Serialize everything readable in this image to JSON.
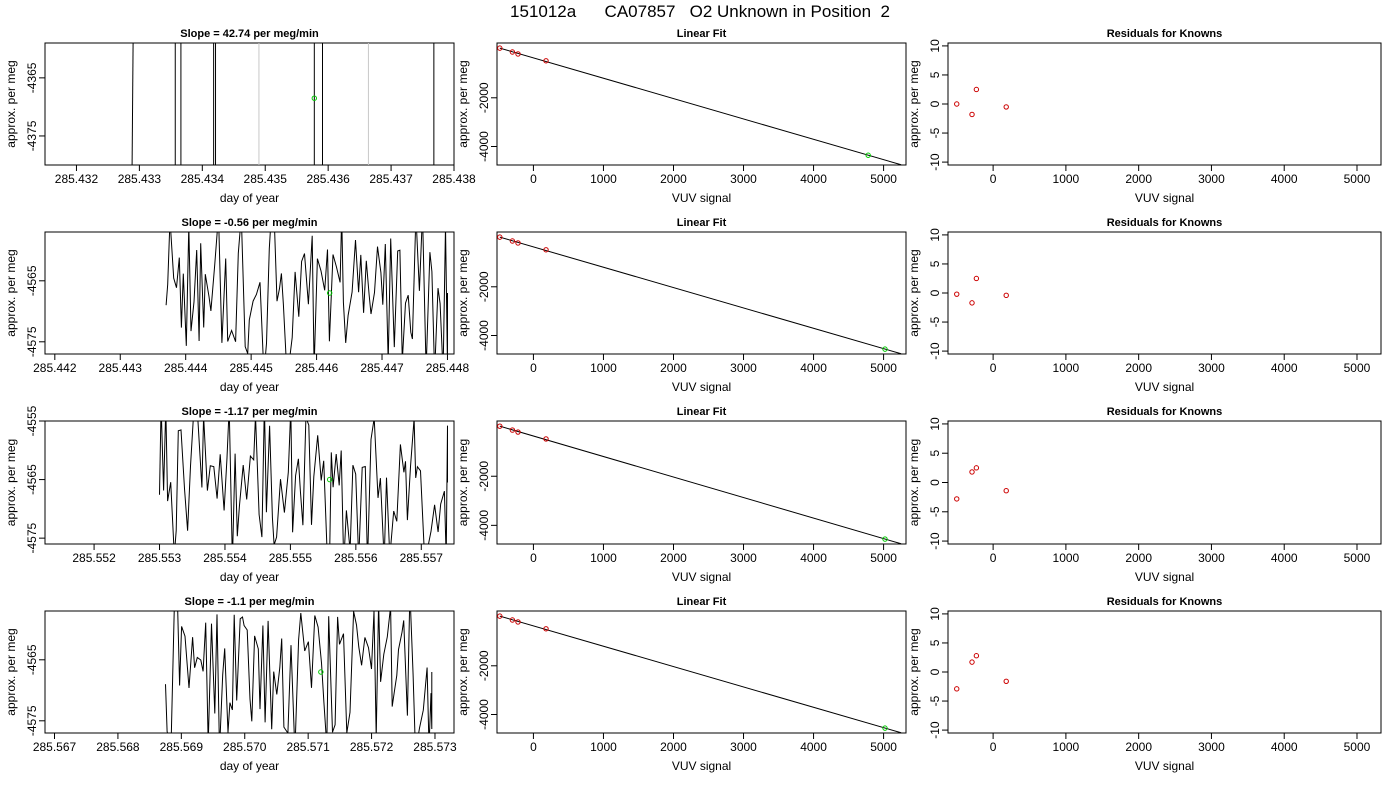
{
  "page": {
    "title": "151012a      CA07857   O2 Unknown in Position  2"
  },
  "colors": {
    "line": "#000000",
    "unknown_point": "#00cc00",
    "known_point": "#cc0000",
    "gray_line": "#c8c8c8",
    "axis": "#000000"
  },
  "chart_data": [
    {
      "type": "line",
      "title": "Slope =  42.74  per meg/min",
      "xlabel": "day of year",
      "ylabel": "approx. per meg",
      "xlim": [
        285.4315,
        285.438
      ],
      "ylim": [
        -4380,
        -4359
      ],
      "x_ticks": [
        "285.432",
        "285.433",
        "285.434",
        "285.435",
        "285.436",
        "285.437",
        "285.438"
      ],
      "y_ticks": [
        "-4365",
        "-4375"
      ],
      "vertical_lines_black": [
        285.4329,
        285.43357,
        285.43366,
        285.43418,
        285.43421,
        285.43578,
        285.43591,
        285.43768
      ],
      "vertical_lines_gray": [
        285.4349,
        285.43664
      ],
      "unknown_point": {
        "x": 285.43578,
        "y": -4368.5
      }
    },
    {
      "type": "scatter",
      "title": "Linear Fit",
      "xlabel": "VUV signal",
      "ylabel": "approx. per meg",
      "xlim": [
        -520,
        5320
      ],
      "ylim": [
        -4760,
        250
      ],
      "x_ticks": [
        "0",
        "1000",
        "2000",
        "3000",
        "4000",
        "5000"
      ],
      "y_ticks": [
        "-2000",
        "-4000"
      ],
      "fit_line": [
        [
          -480,
          40
        ],
        [
          5250,
          -4750
        ]
      ],
      "known_points": [
        [
          -480,
          40
        ],
        [
          -300,
          -120
        ],
        [
          -220,
          -200
        ],
        [
          180,
          -480
        ]
      ],
      "unknown_point": [
        4780,
        -4360
      ]
    },
    {
      "type": "scatter",
      "title": "Residuals for Knowns",
      "xlabel": "VUV signal",
      "ylabel": "approx. per meg",
      "xlim": [
        -620,
        5330
      ],
      "ylim": [
        -10.5,
        10.5
      ],
      "x_ticks": [
        "0",
        "1000",
        "2000",
        "3000",
        "4000",
        "5000"
      ],
      "y_ticks": [
        "-10",
        "-5",
        "0",
        "5",
        "10"
      ],
      "points": [
        [
          -500,
          0
        ],
        [
          -290,
          -1.8
        ],
        [
          -230,
          2.5
        ],
        [
          180,
          -0.5
        ]
      ]
    },
    {
      "type": "line",
      "title": "Slope =  -0.56  per meg/min",
      "xlabel": "day of year",
      "ylabel": "approx. per meg",
      "xlim": [
        285.44185,
        285.4481
      ],
      "ylim": [
        -4577,
        -4557
      ],
      "x_ticks": [
        "285.442",
        "285.443",
        "285.444",
        "285.445",
        "285.446",
        "285.447",
        "285.448"
      ],
      "y_ticks": [
        "-4565",
        "-4575"
      ],
      "noise_range": [
        285.4437,
        285.448
      ],
      "noise_seed": 11,
      "unknown_point": {
        "x": 285.4462,
        "y": -4567
      }
    },
    {
      "type": "scatter",
      "title": "Linear Fit",
      "xlabel": "VUV signal",
      "ylabel": "approx. per meg",
      "xlim": [
        -520,
        5320
      ],
      "ylim": [
        -4760,
        250
      ],
      "x_ticks": [
        "0",
        "1000",
        "2000",
        "3000",
        "4000",
        "5000"
      ],
      "y_ticks": [
        "-2000",
        "-4000"
      ],
      "fit_line": [
        [
          -480,
          40
        ],
        [
          5250,
          -4750
        ]
      ],
      "known_points": [
        [
          -480,
          40
        ],
        [
          -300,
          -120
        ],
        [
          -220,
          -200
        ],
        [
          180,
          -480
        ]
      ],
      "unknown_point": [
        5020,
        -4560
      ]
    },
    {
      "type": "scatter",
      "title": "Residuals for Knowns",
      "xlabel": "VUV signal",
      "ylabel": "approx. per meg",
      "xlim": [
        -620,
        5330
      ],
      "ylim": [
        -10.5,
        10.5
      ],
      "x_ticks": [
        "0",
        "1000",
        "2000",
        "3000",
        "4000",
        "5000"
      ],
      "y_ticks": [
        "-10",
        "-5",
        "0",
        "5",
        "10"
      ],
      "points": [
        [
          -500,
          -0.2
        ],
        [
          -290,
          -1.7
        ],
        [
          -230,
          2.5
        ],
        [
          180,
          -0.4
        ]
      ]
    },
    {
      "type": "line",
      "title": "Slope =  -1.17  per meg/min",
      "xlabel": "day of year",
      "ylabel": "approx. per meg",
      "xlim": [
        285.55125,
        285.5575
      ],
      "ylim": [
        -4576,
        -4555
      ],
      "x_ticks": [
        "285.552",
        "285.553",
        "285.554",
        "285.555",
        "285.556",
        "285.557"
      ],
      "y_ticks": [
        "-4555",
        "-4565",
        "-4575"
      ],
      "noise_range": [
        285.553,
        285.5574
      ],
      "noise_seed": 23,
      "unknown_point": {
        "x": 285.5556,
        "y": -4565
      }
    },
    {
      "type": "scatter",
      "title": "Linear Fit",
      "xlabel": "VUV signal",
      "ylabel": "approx. per meg",
      "xlim": [
        -520,
        5320
      ],
      "ylim": [
        -4760,
        250
      ],
      "x_ticks": [
        "0",
        "1000",
        "2000",
        "3000",
        "4000",
        "5000"
      ],
      "y_ticks": [
        "-2000",
        "-4000"
      ],
      "fit_line": [
        [
          -480,
          40
        ],
        [
          5250,
          -4750
        ]
      ],
      "known_points": [
        [
          -480,
          40
        ],
        [
          -300,
          -120
        ],
        [
          -220,
          -200
        ],
        [
          180,
          -480
        ]
      ],
      "unknown_point": [
        5020,
        -4560
      ]
    },
    {
      "type": "scatter",
      "title": "Residuals for Knowns",
      "xlabel": "VUV signal",
      "ylabel": "approx. per meg",
      "xlim": [
        -620,
        5330
      ],
      "ylim": [
        -10.5,
        10.5
      ],
      "x_ticks": [
        "0",
        "1000",
        "2000",
        "3000",
        "4000",
        "5000"
      ],
      "y_ticks": [
        "-10",
        "-5",
        "0",
        "5",
        "10"
      ],
      "points": [
        [
          -500,
          -2.8
        ],
        [
          -290,
          1.8
        ],
        [
          -230,
          2.5
        ],
        [
          180,
          -1.4
        ]
      ]
    },
    {
      "type": "line",
      "title": "Slope =  -1.1  per meg/min",
      "xlabel": "day of year",
      "ylabel": "approx. per meg",
      "xlim": [
        285.56685,
        285.5733
      ],
      "ylim": [
        -4577,
        -4557
      ],
      "x_ticks": [
        "285.567",
        "285.568",
        "285.569",
        "285.570",
        "285.571",
        "285.572",
        "285.573"
      ],
      "y_ticks": [
        "-4565",
        "-4575"
      ],
      "noise_range": [
        285.56875,
        285.57295
      ],
      "noise_seed": 37,
      "unknown_point": {
        "x": 285.5712,
        "y": -4567
      }
    },
    {
      "type": "scatter",
      "title": "Linear Fit",
      "xlabel": "VUV signal",
      "ylabel": "approx. per meg",
      "xlim": [
        -520,
        5320
      ],
      "ylim": [
        -4760,
        250
      ],
      "x_ticks": [
        "0",
        "1000",
        "2000",
        "3000",
        "4000",
        "5000"
      ],
      "y_ticks": [
        "-2000",
        "-4000"
      ],
      "fit_line": [
        [
          -480,
          40
        ],
        [
          5250,
          -4750
        ]
      ],
      "known_points": [
        [
          -480,
          40
        ],
        [
          -300,
          -120
        ],
        [
          -220,
          -200
        ],
        [
          180,
          -480
        ]
      ],
      "unknown_point": [
        5020,
        -4560
      ]
    },
    {
      "type": "scatter",
      "title": "Residuals for Knowns",
      "xlabel": "VUV signal",
      "ylabel": "approx. per meg",
      "xlim": [
        -620,
        5330
      ],
      "ylim": [
        -10.5,
        10.5
      ],
      "x_ticks": [
        "0",
        "1000",
        "2000",
        "3000",
        "4000",
        "5000"
      ],
      "y_ticks": [
        "-10",
        "-5",
        "0",
        "5",
        "10"
      ],
      "points": [
        [
          -500,
          -2.9
        ],
        [
          -290,
          1.7
        ],
        [
          -230,
          2.8
        ],
        [
          180,
          -1.6
        ]
      ]
    }
  ]
}
